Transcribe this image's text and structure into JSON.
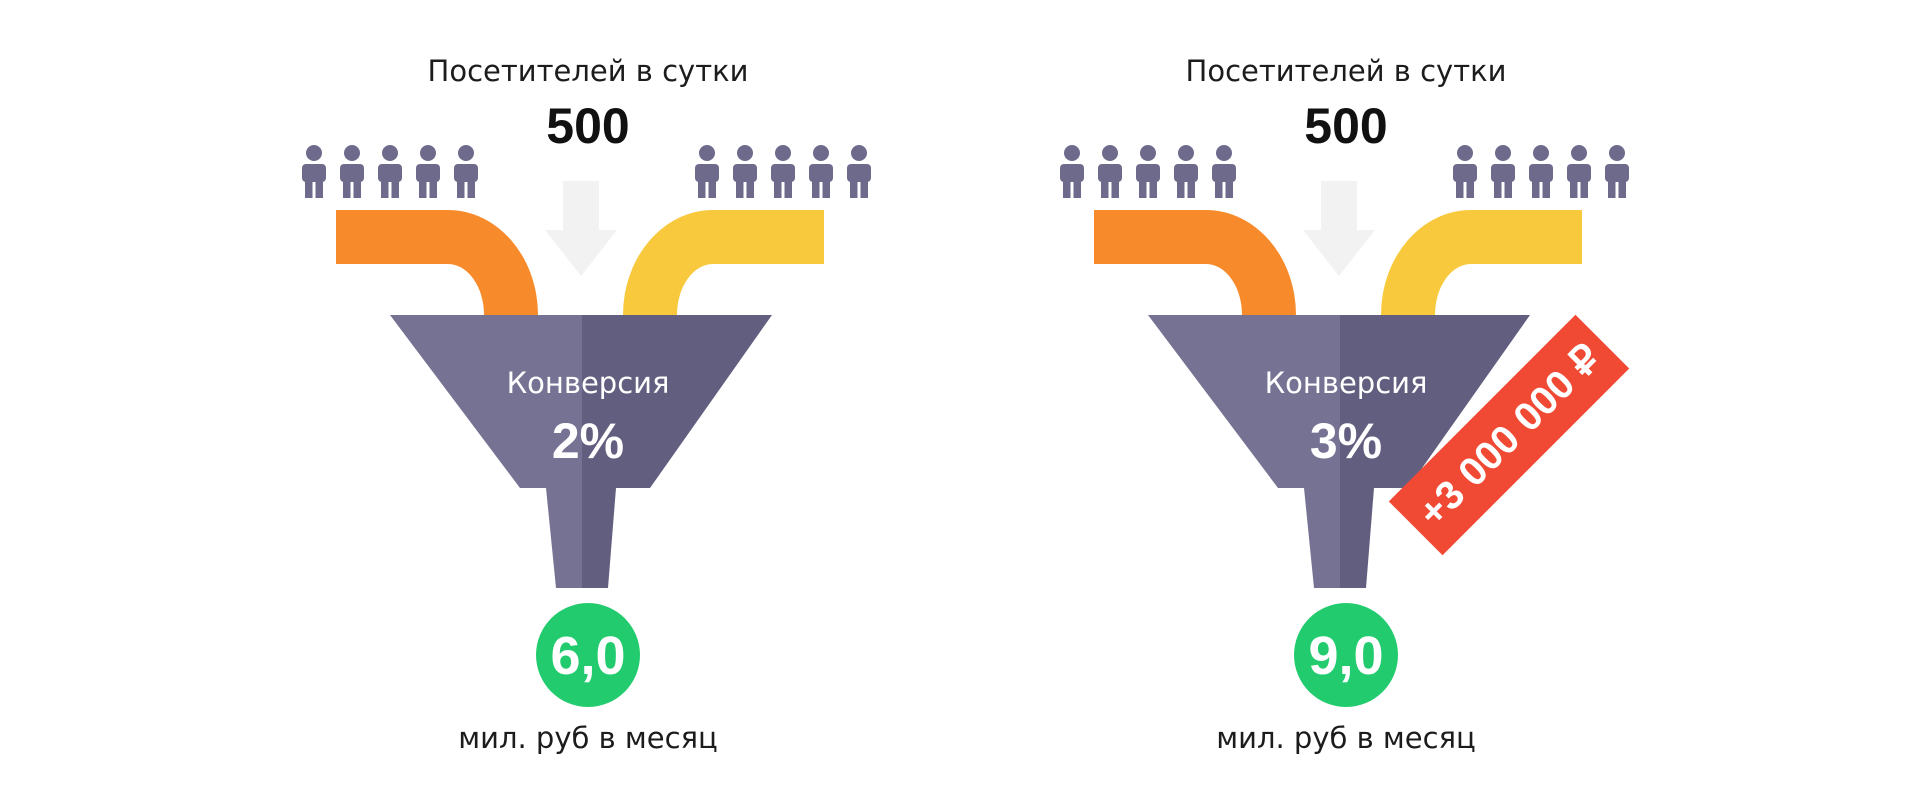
{
  "funnels": [
    {
      "visitors_label": "Посетителей в сутки",
      "visitors_value": "500",
      "conversion_label": "Конверсия",
      "conversion_value": "2%",
      "result_value": "6,0",
      "result_label": "мил. руб в месяц",
      "people_left": 5,
      "people_right": 5
    },
    {
      "visitors_label": "Посетителей в сутки",
      "visitors_value": "500",
      "conversion_label": "Конверсия",
      "conversion_value": "3%",
      "result_value": "9,0",
      "result_label": "мил. руб в месяц",
      "people_left": 5,
      "people_right": 5
    }
  ],
  "badge": {
    "text": "+3 000 000 ₽"
  },
  "colors": {
    "person": "#6e6a8c",
    "pipe_left": "#f78b2c",
    "pipe_right": "#f8c93c",
    "arrow": "#f2f2f2",
    "funnel_light": "#767293",
    "funnel_dark": "#625e7f",
    "result_circle": "#22cc6e",
    "badge": "#f04a34"
  }
}
